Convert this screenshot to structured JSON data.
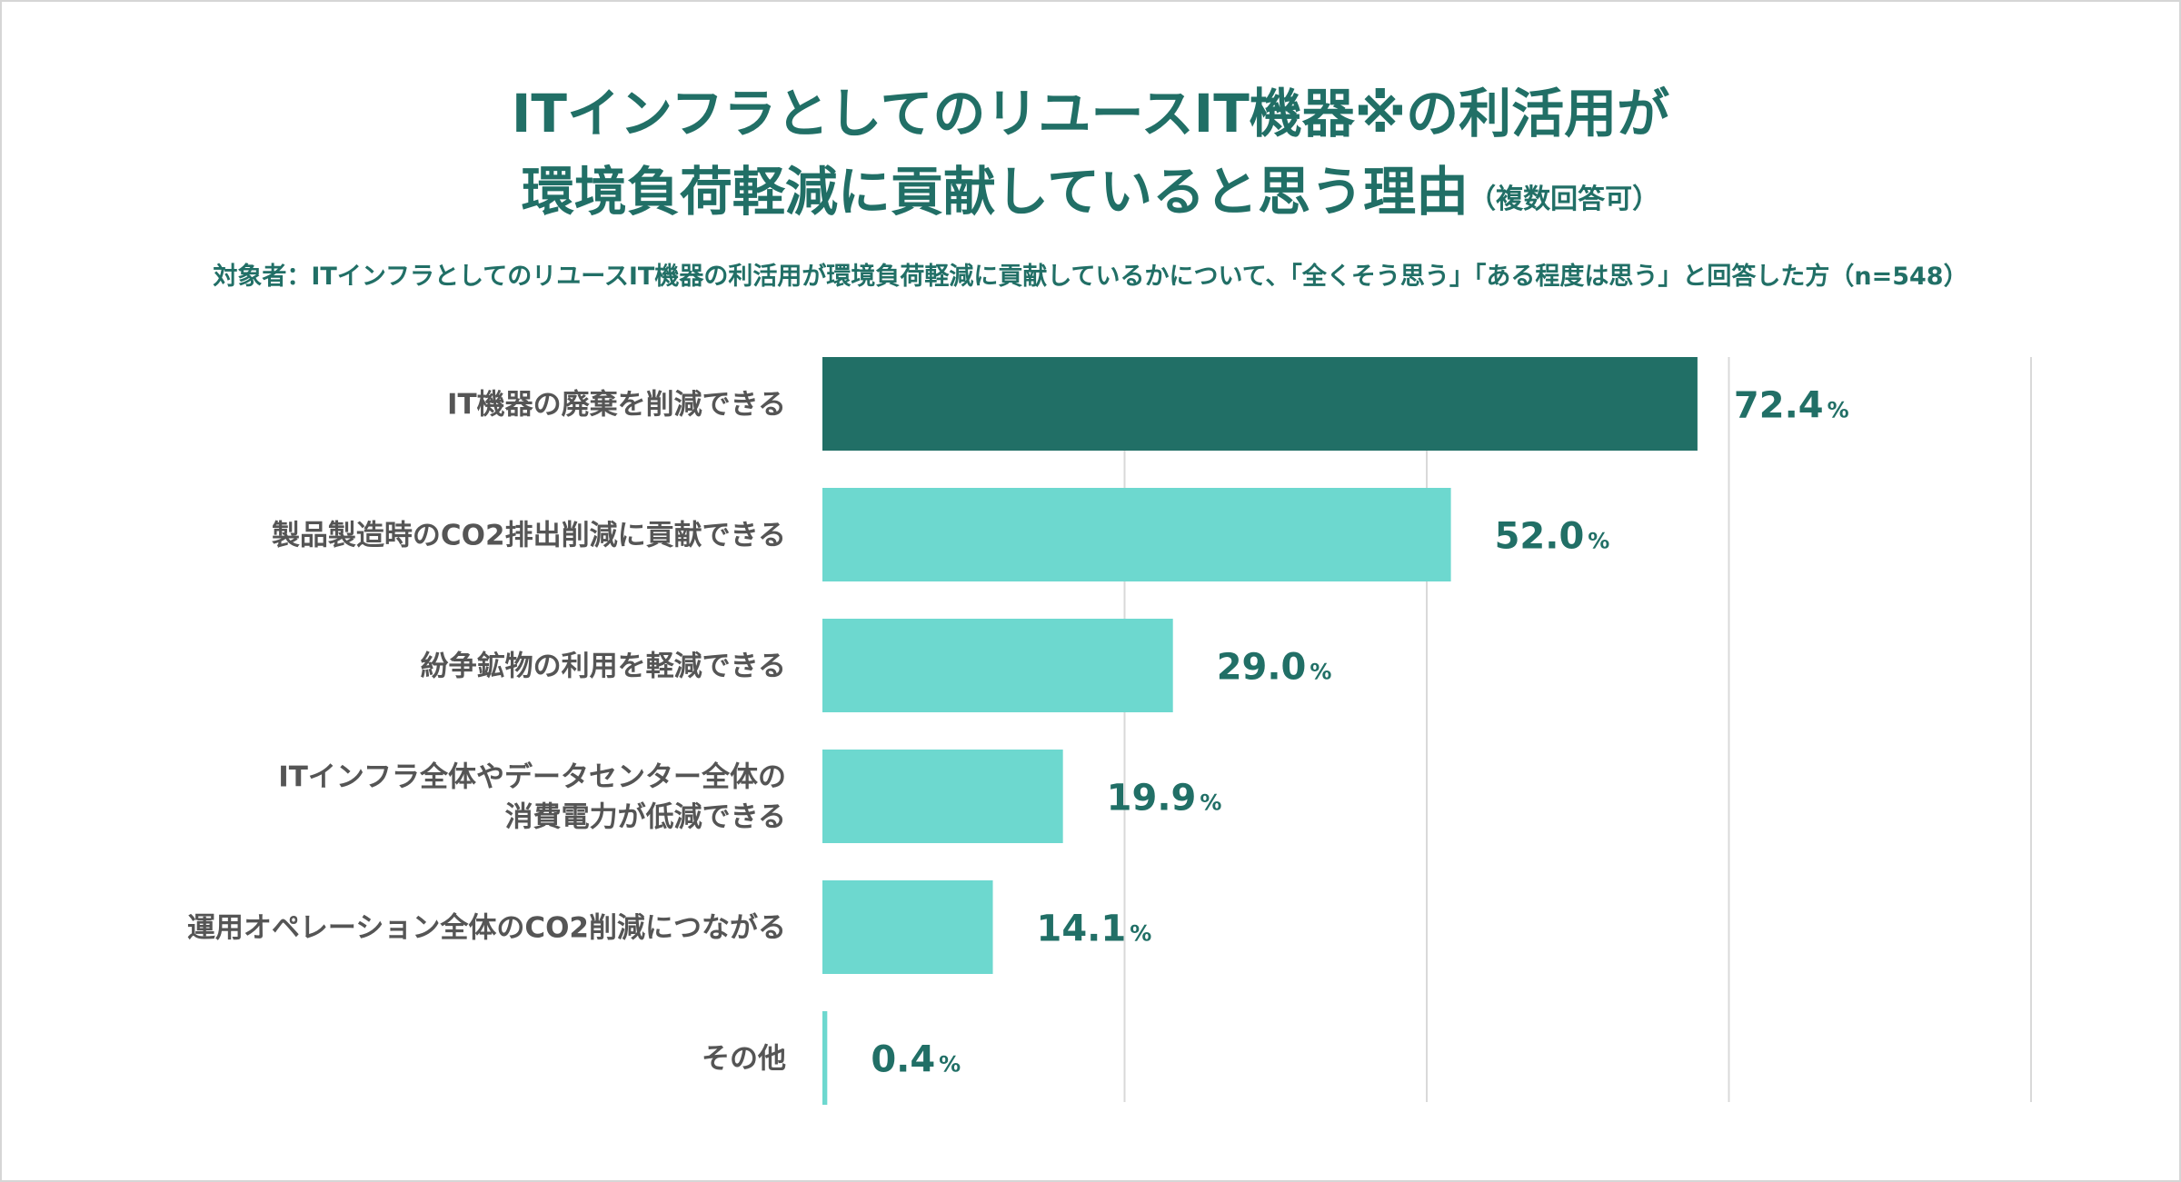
{
  "chart_data": {
    "type": "bar",
    "orientation": "horizontal",
    "title_line1": "ITインフラとしてのリユースIT機器※の利活用が",
    "title_line2": "環境負荷軽減に貢献していると思う理由",
    "title_note": "（複数回答可）",
    "subtitle": "対象者：ITインフラとしてのリユースIT機器の利活用が環境負荷軽減に貢献しているかについて、「全くそう思う」「ある程度は思う」と回答した方（n=548）",
    "categories": [
      [
        "IT機器の廃棄を削減できる"
      ],
      [
        "製品製造時のCO2排出削減に貢献できる"
      ],
      [
        "紛争鉱物の利用を軽減できる"
      ],
      [
        "ITインフラ全体やデータセンター全体の",
        "消費電力が低減できる"
      ],
      [
        "運用オペレーション全体のCO2削減につながる"
      ],
      [
        "その他"
      ]
    ],
    "values": [
      72.4,
      52.0,
      29.0,
      19.9,
      14.1,
      0.4
    ],
    "value_labels": [
      "72.4",
      "52.0",
      "29.0",
      "19.9",
      "14.1",
      "0.4"
    ],
    "unit": "%",
    "xlim": [
      0,
      100
    ],
    "grid": true,
    "colors": {
      "highlight": "#216f66",
      "bar": "#6dd8cf",
      "text": "#216f66",
      "label": "#555555",
      "grid": "#d9d9d9"
    }
  }
}
